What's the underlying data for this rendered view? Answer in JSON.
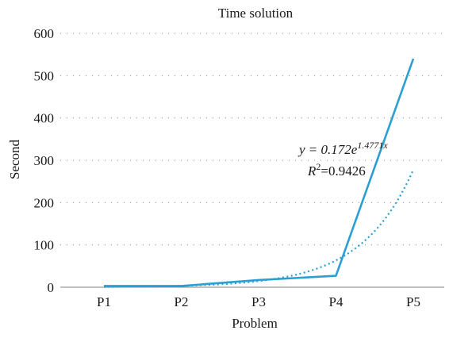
{
  "chart_data": {
    "type": "line",
    "title": "Time solution",
    "xlabel": "Problem",
    "ylabel": "Second",
    "categories": [
      "P1",
      "P2",
      "P3",
      "P4",
      "P5"
    ],
    "ylim": [
      0,
      600
    ],
    "yticks": [
      "0",
      "100",
      "200",
      "300",
      "400",
      "500",
      "600"
    ],
    "grid": "horizontal dotted",
    "series": [
      {
        "values": [
          3,
          3,
          17,
          27,
          540
        ],
        "color": "#2b9fd4",
        "style": "solid"
      }
    ],
    "trendline": {
      "kind": "exponential",
      "color": "#2b9fd4",
      "style": "dotted",
      "a": 0.172,
      "b": 1.4771,
      "equation_prefix": "y = 0.172e",
      "equation_exponent": "1.4771x",
      "r2_label": "R",
      "r2_exponent": "2",
      "r2_value": "=0.9426"
    }
  }
}
